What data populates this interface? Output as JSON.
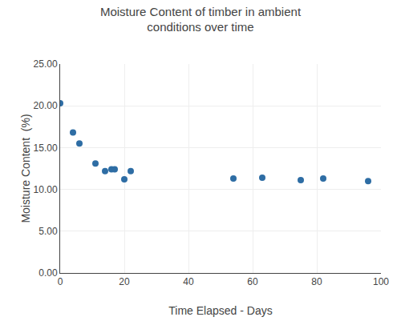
{
  "chart_data": {
    "type": "scatter",
    "title": "Moisture Content of timber in ambient\nconditions over time",
    "x_label": "Time Elapsed - Days",
    "y_label": "Moisture Content  (%)",
    "x": [
      0,
      4,
      6,
      11,
      14,
      16,
      17,
      20,
      22,
      54,
      63,
      75,
      82,
      96
    ],
    "values": [
      20.3,
      16.8,
      15.5,
      13.1,
      12.2,
      12.4,
      12.4,
      11.2,
      12.2,
      11.3,
      11.4,
      11.1,
      11.3,
      11.0
    ],
    "color": "#2E6DA4",
    "xlim": [
      0,
      100
    ],
    "ylim": [
      0.0,
      25.0
    ],
    "xticks": [
      0,
      20,
      40,
      60,
      80,
      100
    ],
    "yticks": [
      {
        "value": 0.0,
        "label": "0.00"
      },
      {
        "value": 5.0,
        "label": "5.00"
      },
      {
        "value": 10.0,
        "label": "10.00"
      },
      {
        "value": 15.0,
        "label": "15.00"
      },
      {
        "value": 20.0,
        "label": "20.00"
      },
      {
        "value": 25.0,
        "label": "25.00"
      }
    ],
    "grid": true
  }
}
